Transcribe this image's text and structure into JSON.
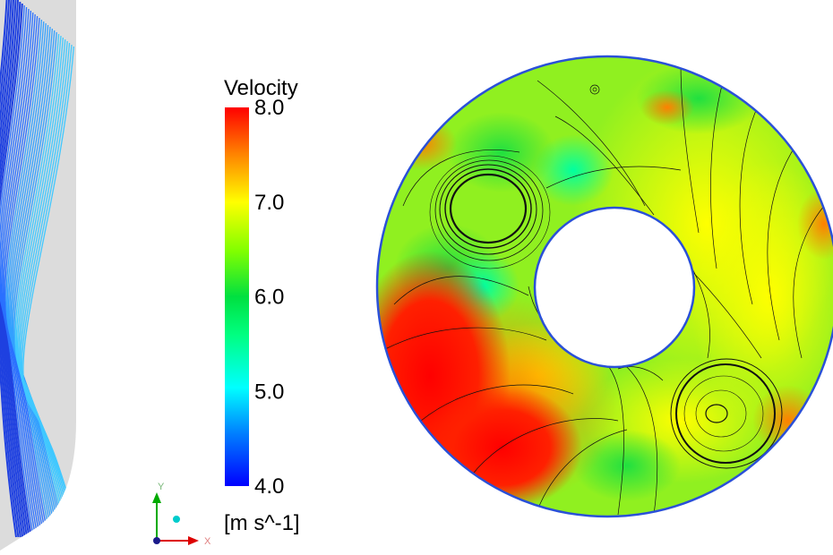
{
  "legend": {
    "title": "Velocity",
    "unit": "[m s^-1]",
    "min": 4.0,
    "max": 8.0,
    "ticks": [
      "8.0",
      "7.0",
      "6.0",
      "5.0",
      "4.0"
    ],
    "colors": [
      "#0000ff",
      "#0080ff",
      "#00ffff",
      "#00ff80",
      "#00e040",
      "#80ff00",
      "#ffff00",
      "#ff8000",
      "#ff0000"
    ]
  },
  "triad": {
    "y_label": "Y",
    "x_label": "X",
    "y_color": "#00aa00",
    "x_color": "#dd0000",
    "origin_color": "#00cccc"
  },
  "panels": {
    "left": {
      "view": "side streamlines",
      "wall_color": "#dcdcdc",
      "line_colors": [
        "#1e40e0",
        "#2a70ff",
        "#33a0ff",
        "#40c8ff"
      ]
    },
    "right": {
      "view": "annular cross-section contour",
      "rim_color": "#2a50d8",
      "streamline_color": "#111111"
    }
  }
}
